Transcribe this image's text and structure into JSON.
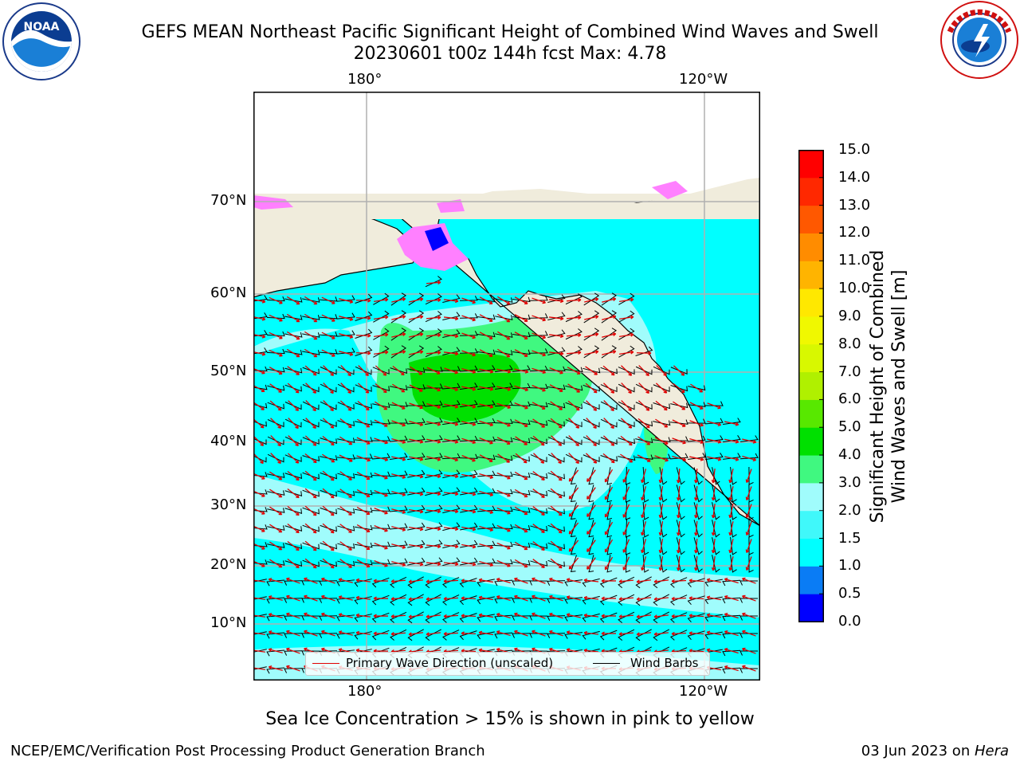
{
  "title": {
    "line1": "GEFS MEAN Northeast Pacific Significant Height of Combined Wind Waves and Swell",
    "line2": "20230601 t00z 144h fcst   Max: 4.78"
  },
  "logos": {
    "left_icon": "noaa-logo",
    "right_icon": "national-weather-service-logo"
  },
  "map": {
    "lon_labels": [
      "180°",
      "120°W"
    ],
    "lat_labels": [
      "70°N",
      "60°N",
      "50°N",
      "40°N",
      "30°N",
      "20°N",
      "10°N"
    ],
    "land_color": "#f0ecdc",
    "ocean_color": "#00ffff"
  },
  "legend": {
    "wave_label": "Primary Wave Direction (unscaled)",
    "wave_color": "#e00000",
    "wind_label": "Wind Barbs",
    "wind_color": "#000000"
  },
  "colorbar": {
    "label": "Significant Height of Combined\nWind Waves and Swell [m]",
    "ticks": [
      "0.0",
      "0.5",
      "1.0",
      "1.5",
      "2.0",
      "3.0",
      "4.0",
      "5.0",
      "6.0",
      "7.0",
      "8.0",
      "9.0",
      "10.0",
      "11.0",
      "12.0",
      "13.0",
      "14.0",
      "15.0"
    ],
    "colors": [
      "#0000ff",
      "#0a7cf5",
      "#00ffff",
      "#40f8fa",
      "#a0fcfc",
      "#40f880",
      "#00e000",
      "#58e800",
      "#b0f000",
      "#d8f800",
      "#f0f800",
      "#ffe800",
      "#ffb400",
      "#ff8c00",
      "#ff5800",
      "#ff2800",
      "#ff0000"
    ]
  },
  "note": "Sea Ice Concentration > 15% is shown in pink to yellow",
  "footer": {
    "left": "NCEP/EMC/Verification Post Processing Product Generation Branch",
    "right_prefix": "03 Jun 2023 on ",
    "right_host": "Hera"
  }
}
